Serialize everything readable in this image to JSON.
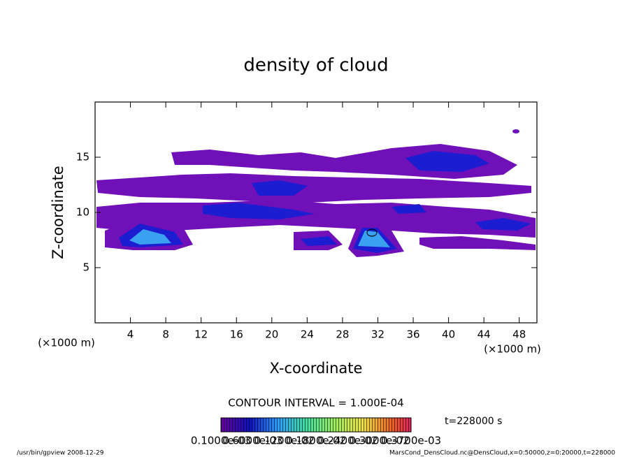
{
  "chart_data": {
    "type": "contour",
    "title": "density of cloud",
    "xlabel": "X-coordinate",
    "ylabel": "Z-coordinate",
    "xunit": "(×1000 m)",
    "yunit": "(×1000 m)",
    "xlim": [
      0,
      50
    ],
    "xticks": [
      4,
      8,
      12,
      16,
      20,
      24,
      28,
      32,
      36,
      40,
      44,
      48
    ],
    "ylim": [
      0,
      20
    ],
    "yticks": [
      5,
      10,
      15
    ],
    "contour_interval": "CONTOUR INTERVAL = 1.000E-04",
    "time_label": "t=228000 s",
    "colorbar_labels": [
      "0.1000e-03",
      "0.6000e-03",
      "0.1200e-02",
      "0.1800e-02",
      "0.2400e-02",
      "0.3000e-02",
      "0.3700e-03"
    ],
    "footer_left": "/usr/bin/gpview   2008-12-29",
    "footer_right": "MarsCond_DensCloud.nc@DensCloud,x=0:50000,z=0:20000,t=228000"
  }
}
